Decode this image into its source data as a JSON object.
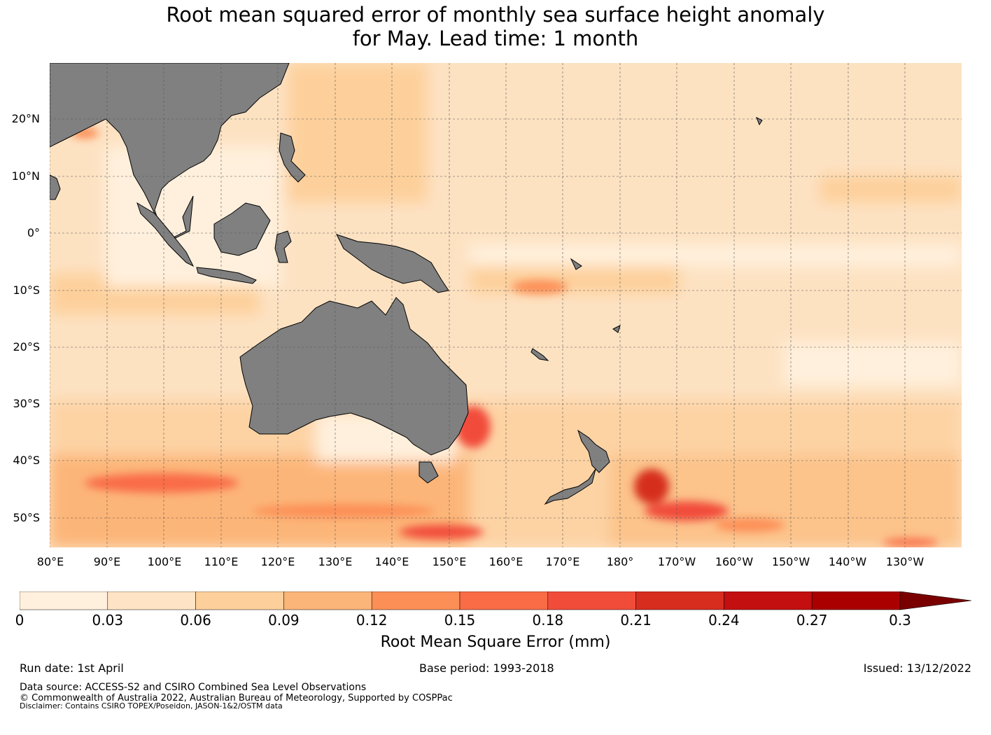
{
  "title_line1": "Root mean squared error of monthly sea surface height anomaly",
  "title_line2": "for May. Lead time: 1 month",
  "map": {
    "land_color": "#808080",
    "lat_labels": [
      "20°N",
      "10°N",
      "0°",
      "10°S",
      "20°S",
      "30°S",
      "40°S",
      "50°S"
    ],
    "lon_labels": [
      "80°E",
      "90°E",
      "100°E",
      "110°E",
      "120°E",
      "130°E",
      "140°E",
      "150°E",
      "160°E",
      "170°E",
      "180°",
      "170°W",
      "160°W",
      "150°W",
      "140°W",
      "130°W"
    ]
  },
  "colorbar": {
    "ticks": [
      "0",
      "0.03",
      "0.06",
      "0.09",
      "0.12",
      "0.15",
      "0.18",
      "0.21",
      "0.24",
      "0.27",
      "0.3"
    ],
    "colors": [
      "#fff0dd",
      "#fee4c4",
      "#fdd09b",
      "#fcb578",
      "#fc8f56",
      "#f96c46",
      "#f14c3a",
      "#d62d1f",
      "#c30f0f",
      "#aa0000",
      "#7a0000"
    ],
    "label": "Root Mean Square Error (mm)"
  },
  "footer": {
    "run_date": "Run date: 1st April",
    "base_period": "Base period: 1993-2018",
    "issued": "Issued: 13/12/2022",
    "data_source": "Data source: ACCESS-S2 and CSIRO Combined Sea Level Observations",
    "copyright": "© Commonwealth of Australia 2022, Australian Bureau of Meteorology, Supported by COSPPac",
    "disclaimer": "Disclaimer: Contains CSIRO TOPEX/Poseidon, JASON-1&2/OSTM data"
  }
}
